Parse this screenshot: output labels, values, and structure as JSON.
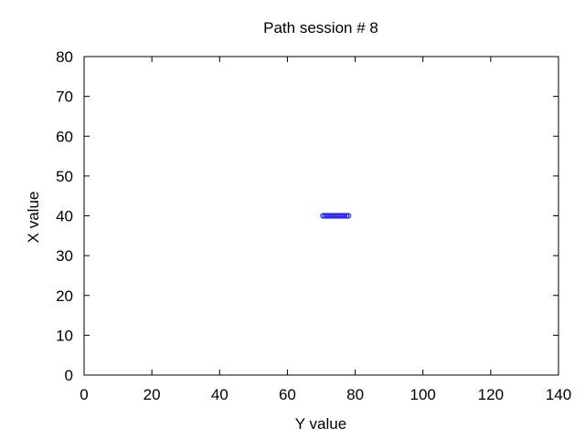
{
  "chart_data": {
    "type": "scatter",
    "title": "Path session # 8",
    "xlabel": "Y value",
    "ylabel": "X value",
    "xlim": [
      0,
      140
    ],
    "ylim": [
      0,
      80
    ],
    "xticks": [
      0,
      20,
      40,
      60,
      80,
      100,
      120,
      140
    ],
    "yticks": [
      0,
      10,
      20,
      30,
      40,
      50,
      60,
      70,
      80
    ],
    "grid": false,
    "series": [
      {
        "color": "#1a1aff",
        "marker": "circle-open",
        "points": [
          {
            "x": 70.5,
            "y": 40
          },
          {
            "x": 71.0,
            "y": 40
          },
          {
            "x": 71.5,
            "y": 40
          },
          {
            "x": 72.0,
            "y": 40
          },
          {
            "x": 72.5,
            "y": 40
          },
          {
            "x": 73.0,
            "y": 40
          },
          {
            "x": 73.5,
            "y": 40
          },
          {
            "x": 74.0,
            "y": 40
          },
          {
            "x": 74.5,
            "y": 40
          },
          {
            "x": 75.0,
            "y": 40
          },
          {
            "x": 75.5,
            "y": 40
          },
          {
            "x": 76.0,
            "y": 40
          },
          {
            "x": 76.5,
            "y": 40
          },
          {
            "x": 77.0,
            "y": 40
          },
          {
            "x": 77.5,
            "y": 40
          },
          {
            "x": 78.0,
            "y": 40
          }
        ]
      }
    ]
  }
}
